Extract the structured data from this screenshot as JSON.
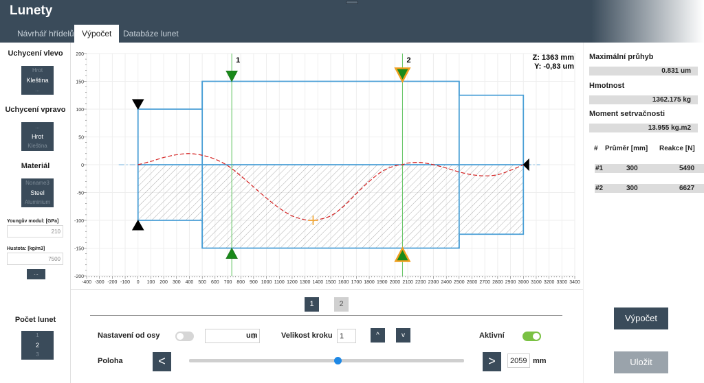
{
  "app": {
    "title": "Lunety"
  },
  "tabs": [
    "Návrhář hřídelů",
    "Výpočet",
    "Databáze lunet"
  ],
  "left": {
    "left_support": {
      "label": "Uchycení vlevo",
      "above": "Hrot",
      "selected": "Kleština",
      "below": "..."
    },
    "right_support": {
      "label": "Uchycení vpravo",
      "above": "...",
      "selected": "Hrot",
      "below": "Kleština"
    },
    "material": {
      "label": "Materiál",
      "above": "Noname3",
      "selected": "Steel",
      "below": "Aluminium"
    },
    "young_label": "Youngův modul: [GPa]",
    "young_value": "210",
    "density_label": "Hustota: [kg/m3]",
    "density_value": "7500",
    "more_button": "...",
    "count": {
      "label": "Počet lunet",
      "above": "1",
      "selected": "2",
      "below": "3"
    }
  },
  "chart": {
    "cursor_z": "Z: 1363 mm",
    "cursor_y": "Y: -0,83 um",
    "marker1": "1",
    "marker2": "2"
  },
  "chart_data": {
    "type": "line",
    "x_ticks": [
      "-400",
      "-300",
      "-200",
      "-100",
      "0",
      "100",
      "200",
      "300",
      "400",
      "500",
      "600",
      "700",
      "800",
      "900",
      "1000",
      "1100",
      "1200",
      "1300",
      "1400",
      "1500",
      "1600",
      "1700",
      "1800",
      "1900",
      "2000",
      "2100",
      "2200",
      "2300",
      "2400",
      "2500",
      "2600",
      "2700",
      "2800",
      "2900",
      "3000",
      "3100",
      "3200",
      "3300",
      "3400"
    ],
    "y_ticks": [
      "200",
      "150",
      "100",
      "50",
      "0",
      "-50",
      "-100",
      "-150",
      "-200"
    ],
    "xlim": [
      -400,
      3400
    ],
    "ylim": [
      -200,
      200
    ],
    "grid": true,
    "shaft_profile": [
      {
        "x0": 0,
        "x1": 500,
        "r": 100
      },
      {
        "x0": 500,
        "x1": 2500,
        "r": 150
      },
      {
        "x0": 2500,
        "x1": 3000,
        "r": 125
      }
    ],
    "steady_rests": [
      730,
      2059
    ],
    "deflection_curve": {
      "x": [
        0,
        100,
        200,
        300,
        400,
        500,
        600,
        700,
        800,
        900,
        1000,
        1100,
        1200,
        1300,
        1363,
        1400,
        1500,
        1600,
        1700,
        1800,
        1900,
        2000,
        2059,
        2100,
        2200,
        2300,
        2400,
        2500,
        2600,
        2700,
        2800,
        2900,
        3000
      ],
      "y": [
        0,
        6,
        13,
        18,
        20,
        17,
        10,
        -2,
        -20,
        -40,
        -60,
        -78,
        -92,
        -99,
        -100,
        -99,
        -92,
        -75,
        -52,
        -30,
        -12,
        -2,
        0,
        3,
        4,
        0,
        -6,
        -13,
        -18,
        -20,
        -18,
        -10,
        0
      ]
    },
    "cursor_point": {
      "x": 1363,
      "y": -100
    }
  },
  "right": {
    "max_label": "Maximální průhyb",
    "max_value": "0.831 um",
    "mass_label": "Hmotnost",
    "mass_value": "1362.175 kg",
    "inertia_label": "Moment setrvačnosti",
    "inertia_value": "13.955 kg.m2",
    "table": {
      "headers": [
        "#",
        "Průměr [mm]",
        "Reakce [N]"
      ],
      "rows": [
        [
          "#1",
          "300",
          "5490"
        ],
        [
          "#2",
          "300",
          "6627"
        ]
      ]
    },
    "calc_button": "Výpočet",
    "save_button": "Uložit"
  },
  "bottom": {
    "pages": [
      "1",
      "2"
    ],
    "offset_label": "Nastavení od osy",
    "offset_value": "0",
    "offset_unit": "um",
    "step_label": "Velikost kroku",
    "step_value": "1",
    "up": "^",
    "down": "v",
    "active_label": "Aktivní",
    "position_label": "Poloha",
    "prev": "<",
    "next": ">",
    "position_value": "2059",
    "position_unit": "mm",
    "slider_value": 0.54,
    "colors": {
      "accent": "#3a4b5a",
      "toggle_on": "#7ac143",
      "toggle_off": "#d6d6d6",
      "slider": "#1e88e5"
    }
  }
}
